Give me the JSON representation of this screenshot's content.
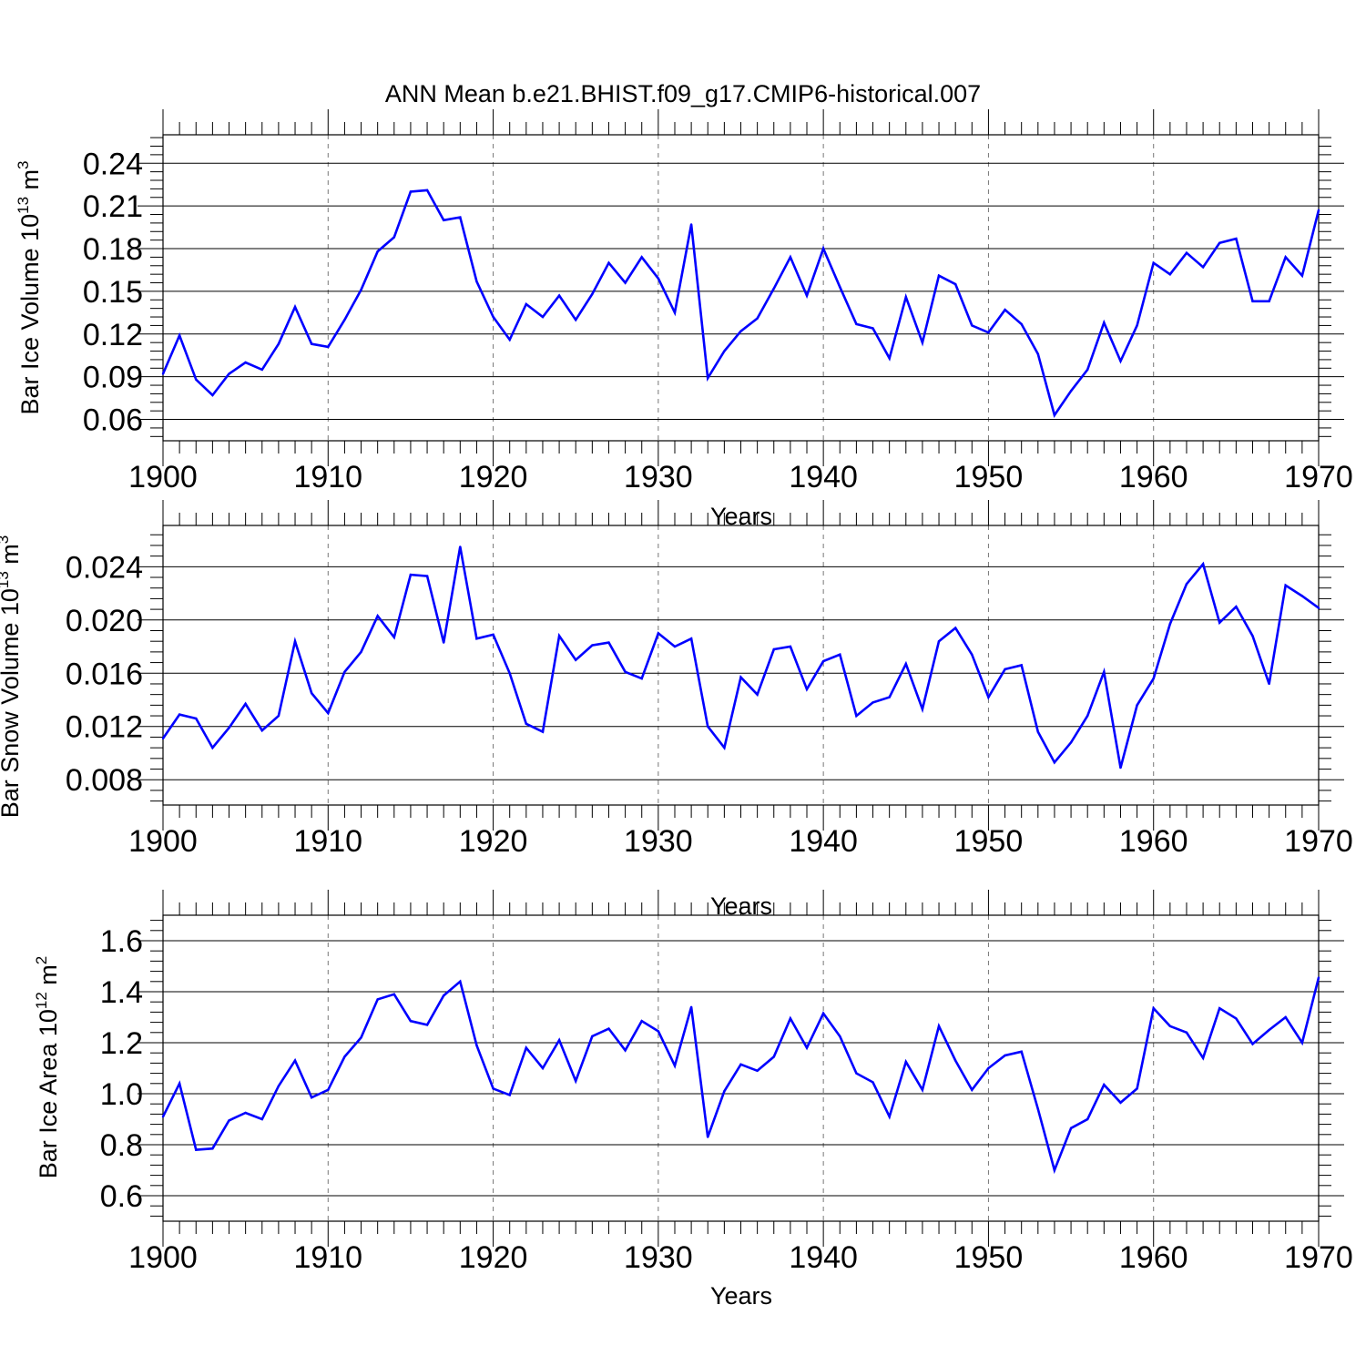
{
  "title": "ANN Mean b.e21.BHIST.f09_g17.CMIP6-historical.007",
  "colors": {
    "line": "#0000ff",
    "axis": "#000000",
    "grid": "#777777"
  },
  "chart_data": [
    {
      "type": "line",
      "name": "ice-volume",
      "ylabel": {
        "main": "Bar Ice Volume 10",
        "exp": "13",
        "unit": " m",
        "unit_exp": "3"
      },
      "xlabel": "Years",
      "xlim": [
        1900,
        1970
      ],
      "ylim": [
        0.045,
        0.26
      ],
      "yticks": [
        0.06,
        0.09,
        0.12,
        0.15,
        0.18,
        0.21,
        0.24
      ],
      "ytick_labels": [
        "0.06",
        "0.09",
        "0.12",
        "0.15",
        "0.18",
        "0.21",
        "0.24"
      ],
      "minor_step": 0.006,
      "xticks": [
        1900,
        1910,
        1920,
        1930,
        1940,
        1950,
        1960,
        1970
      ],
      "xtick_labels": [
        "1900",
        "1910",
        "1920",
        "1930",
        "1940",
        "1950",
        "1960",
        "1970"
      ],
      "grid": "vertical dashed at decades",
      "x_start": 1900,
      "values": [
        0.092,
        0.119,
        0.088,
        0.077,
        0.092,
        0.1,
        0.095,
        0.113,
        0.139,
        0.113,
        0.111,
        0.13,
        0.151,
        0.178,
        0.188,
        0.22,
        0.221,
        0.2,
        0.202,
        0.157,
        0.132,
        0.116,
        0.141,
        0.132,
        0.147,
        0.13,
        0.148,
        0.17,
        0.156,
        0.174,
        0.159,
        0.135,
        0.197,
        0.089,
        0.108,
        0.122,
        0.131,
        0.152,
        0.174,
        0.147,
        0.18,
        0.153,
        0.127,
        0.124,
        0.103,
        0.146,
        0.114,
        0.161,
        0.155,
        0.126,
        0.121,
        0.137,
        0.127,
        0.106,
        0.063,
        0.08,
        0.095,
        0.128,
        0.101,
        0.126,
        0.17,
        0.162,
        0.177,
        0.167,
        0.184,
        0.187,
        0.143,
        0.143,
        0.174,
        0.161,
        0.207
      ]
    },
    {
      "type": "line",
      "name": "snow-volume",
      "ylabel": {
        "main": "Bar Snow Volume 10",
        "exp": "13",
        "unit": " m",
        "unit_exp": "3"
      },
      "xlabel": "Years",
      "xlim": [
        1900,
        1970
      ],
      "ylim": [
        0.0061,
        0.0271
      ],
      "yticks": [
        0.008,
        0.012,
        0.016,
        0.02,
        0.024
      ],
      "ytick_labels": [
        "0.008",
        "0.012",
        "0.016",
        "0.020",
        "0.024"
      ],
      "minor_step": 0.0008,
      "xticks": [
        1900,
        1910,
        1920,
        1930,
        1940,
        1950,
        1960,
        1970
      ],
      "xtick_labels": [
        "1900",
        "1910",
        "1920",
        "1930",
        "1940",
        "1950",
        "1960",
        "1970"
      ],
      "grid": "vertical dashed at decades",
      "x_start": 1900,
      "values": [
        0.0111,
        0.0129,
        0.0126,
        0.0104,
        0.0119,
        0.0137,
        0.0117,
        0.0128,
        0.0184,
        0.0145,
        0.013,
        0.0161,
        0.0176,
        0.0203,
        0.0187,
        0.0234,
        0.0233,
        0.0183,
        0.0255,
        0.0186,
        0.0189,
        0.016,
        0.0122,
        0.0116,
        0.0188,
        0.017,
        0.0181,
        0.0183,
        0.0161,
        0.0156,
        0.019,
        0.018,
        0.0186,
        0.012,
        0.0104,
        0.0157,
        0.0144,
        0.0178,
        0.018,
        0.0148,
        0.0169,
        0.0174,
        0.0128,
        0.0138,
        0.0142,
        0.0167,
        0.0133,
        0.0184,
        0.0194,
        0.0174,
        0.0142,
        0.0163,
        0.0166,
        0.0116,
        0.0093,
        0.0108,
        0.0128,
        0.0161,
        0.0089,
        0.0136,
        0.0156,
        0.0197,
        0.0227,
        0.0242,
        0.0198,
        0.021,
        0.0188,
        0.0152,
        0.0226,
        0.0218,
        0.0209
      ]
    },
    {
      "type": "line",
      "name": "ice-area",
      "ylabel": {
        "main": "Bar Ice Area 10",
        "exp": "12",
        "unit": " m",
        "unit_exp": "2"
      },
      "xlabel": "Years",
      "xlim": [
        1900,
        1970
      ],
      "ylim": [
        0.5,
        1.7
      ],
      "yticks": [
        0.6,
        0.8,
        1.0,
        1.2,
        1.4,
        1.6
      ],
      "ytick_labels": [
        "0.6",
        "0.8",
        "1.0",
        "1.2",
        "1.4",
        "1.6"
      ],
      "minor_step": 0.04,
      "xticks": [
        1900,
        1910,
        1920,
        1930,
        1940,
        1950,
        1960,
        1970
      ],
      "xtick_labels": [
        "1900",
        "1910",
        "1920",
        "1930",
        "1940",
        "1950",
        "1960",
        "1970"
      ],
      "grid": "vertical dashed at decades",
      "x_start": 1900,
      "values": [
        0.91,
        1.04,
        0.78,
        0.785,
        0.895,
        0.925,
        0.9,
        1.03,
        1.13,
        0.985,
        1.015,
        1.145,
        1.22,
        1.37,
        1.39,
        1.285,
        1.27,
        1.385,
        1.44,
        1.19,
        1.02,
        0.995,
        1.18,
        1.1,
        1.21,
        1.05,
        1.225,
        1.255,
        1.17,
        1.285,
        1.245,
        1.11,
        1.34,
        0.83,
        1.01,
        1.115,
        1.09,
        1.145,
        1.295,
        1.18,
        1.315,
        1.225,
        1.08,
        1.045,
        0.91,
        1.125,
        1.015,
        1.265,
        1.13,
        1.015,
        1.1,
        1.15,
        1.165,
        0.94,
        0.7,
        0.865,
        0.9,
        1.035,
        0.965,
        1.02,
        1.335,
        1.265,
        1.24,
        1.14,
        1.335,
        1.295,
        1.195,
        1.25,
        1.3,
        1.2,
        1.455
      ]
    }
  ]
}
